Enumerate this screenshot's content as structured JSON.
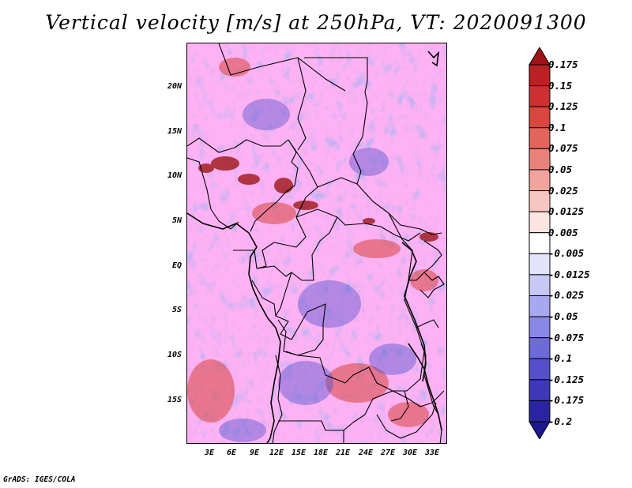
{
  "title": "Vertical velocity [m/s] at 250hPa, VT: 2020091300",
  "map": {
    "lat_range": [
      -20,
      25
    ],
    "lon_range": [
      0,
      35
    ],
    "lat_labels": [
      "20N",
      "15N",
      "10N",
      "5N",
      "EQ",
      "5S",
      "10S",
      "15S"
    ],
    "lon_labels": [
      "3E",
      "6E",
      "9E",
      "12E",
      "15E",
      "18E",
      "21E",
      "24E",
      "27E",
      "30E",
      "33E"
    ],
    "field": "vertical velocity at 250hPa"
  },
  "colorbar": {
    "labels": [
      "0.175",
      "0.15",
      "0.125",
      "0.1",
      "0.075",
      "0.05",
      "0.025",
      "0.0125",
      "0.005",
      "-0.005",
      "-0.0125",
      "-0.025",
      "-0.05",
      "-0.075",
      "-0.1",
      "-0.125",
      "-0.175",
      "-0.2"
    ],
    "colors": [
      "#a11216",
      "#bb2022",
      "#cc3030",
      "#d9473f",
      "#e2645b",
      "#ea827a",
      "#f2a39c",
      "#f7c6c1",
      "#fbe4e1",
      "#ffffff",
      "#e3e3fb",
      "#c8c8f5",
      "#a8a8ee",
      "#8a88e6",
      "#6d6ad9",
      "#5450cb",
      "#3d38b8",
      "#2a24a2",
      "#1e1890"
    ]
  },
  "footer": "GrADS: IGES/COLA"
}
